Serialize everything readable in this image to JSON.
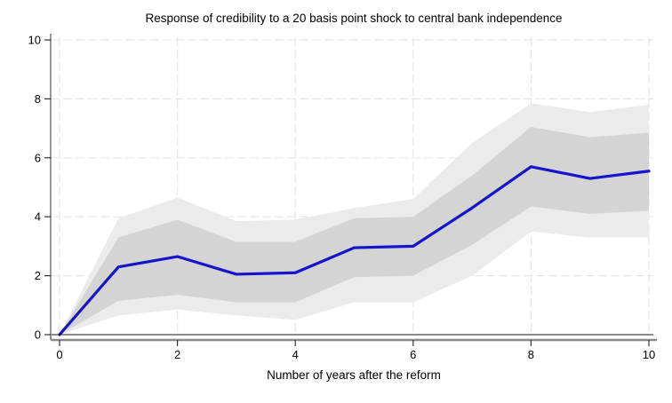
{
  "page": {
    "background": "#ffffff"
  },
  "chart_data": {
    "type": "line",
    "title": "Response of credibility to a 20 basis point shock to central bank independence",
    "xlabel": "Number of years after the reform",
    "ylabel": "",
    "x": [
      0,
      1,
      2,
      3,
      4,
      5,
      6,
      7,
      8,
      9,
      10
    ],
    "xlim": [
      0,
      10
    ],
    "ylim": [
      0,
      10
    ],
    "xticks": [
      0,
      2,
      4,
      6,
      8,
      10
    ],
    "yticks": [
      0,
      2,
      4,
      6,
      8,
      10
    ],
    "grid": "dashed, both axes",
    "legend": "none",
    "zero_line": true,
    "series": [
      {
        "name": "outer-confidence-band",
        "type": "band",
        "fill": "#ebebeb",
        "upper": [
          0,
          3.95,
          4.65,
          3.85,
          3.9,
          4.3,
          4.6,
          6.5,
          7.85,
          7.55,
          7.8
        ],
        "lower": [
          0,
          0.65,
          0.85,
          0.65,
          0.5,
          1.1,
          1.1,
          2.0,
          3.5,
          3.3,
          3.3
        ]
      },
      {
        "name": "inner-confidence-band",
        "type": "band",
        "fill": "#d4d4d4",
        "upper": [
          0,
          3.3,
          3.9,
          3.15,
          3.15,
          3.95,
          4.0,
          5.4,
          7.05,
          6.7,
          6.85
        ],
        "lower": [
          0,
          1.15,
          1.35,
          1.1,
          1.1,
          1.95,
          2.0,
          3.05,
          4.35,
          4.1,
          4.2
        ]
      },
      {
        "name": "response-line",
        "type": "line",
        "color": "#1414cc",
        "values": [
          0,
          2.3,
          2.65,
          2.05,
          2.1,
          2.95,
          3.0,
          4.3,
          5.7,
          5.3,
          5.55
        ]
      }
    ],
    "colors": {
      "line": "#1414cc",
      "inner_band": "#d4d4d4",
      "outer_band": "#ebebeb",
      "grid": "#e6e6e6",
      "axis": "#8a8a8a",
      "tick": "#333333",
      "zero_line": "#1a1a1a",
      "text": "#000000"
    }
  }
}
